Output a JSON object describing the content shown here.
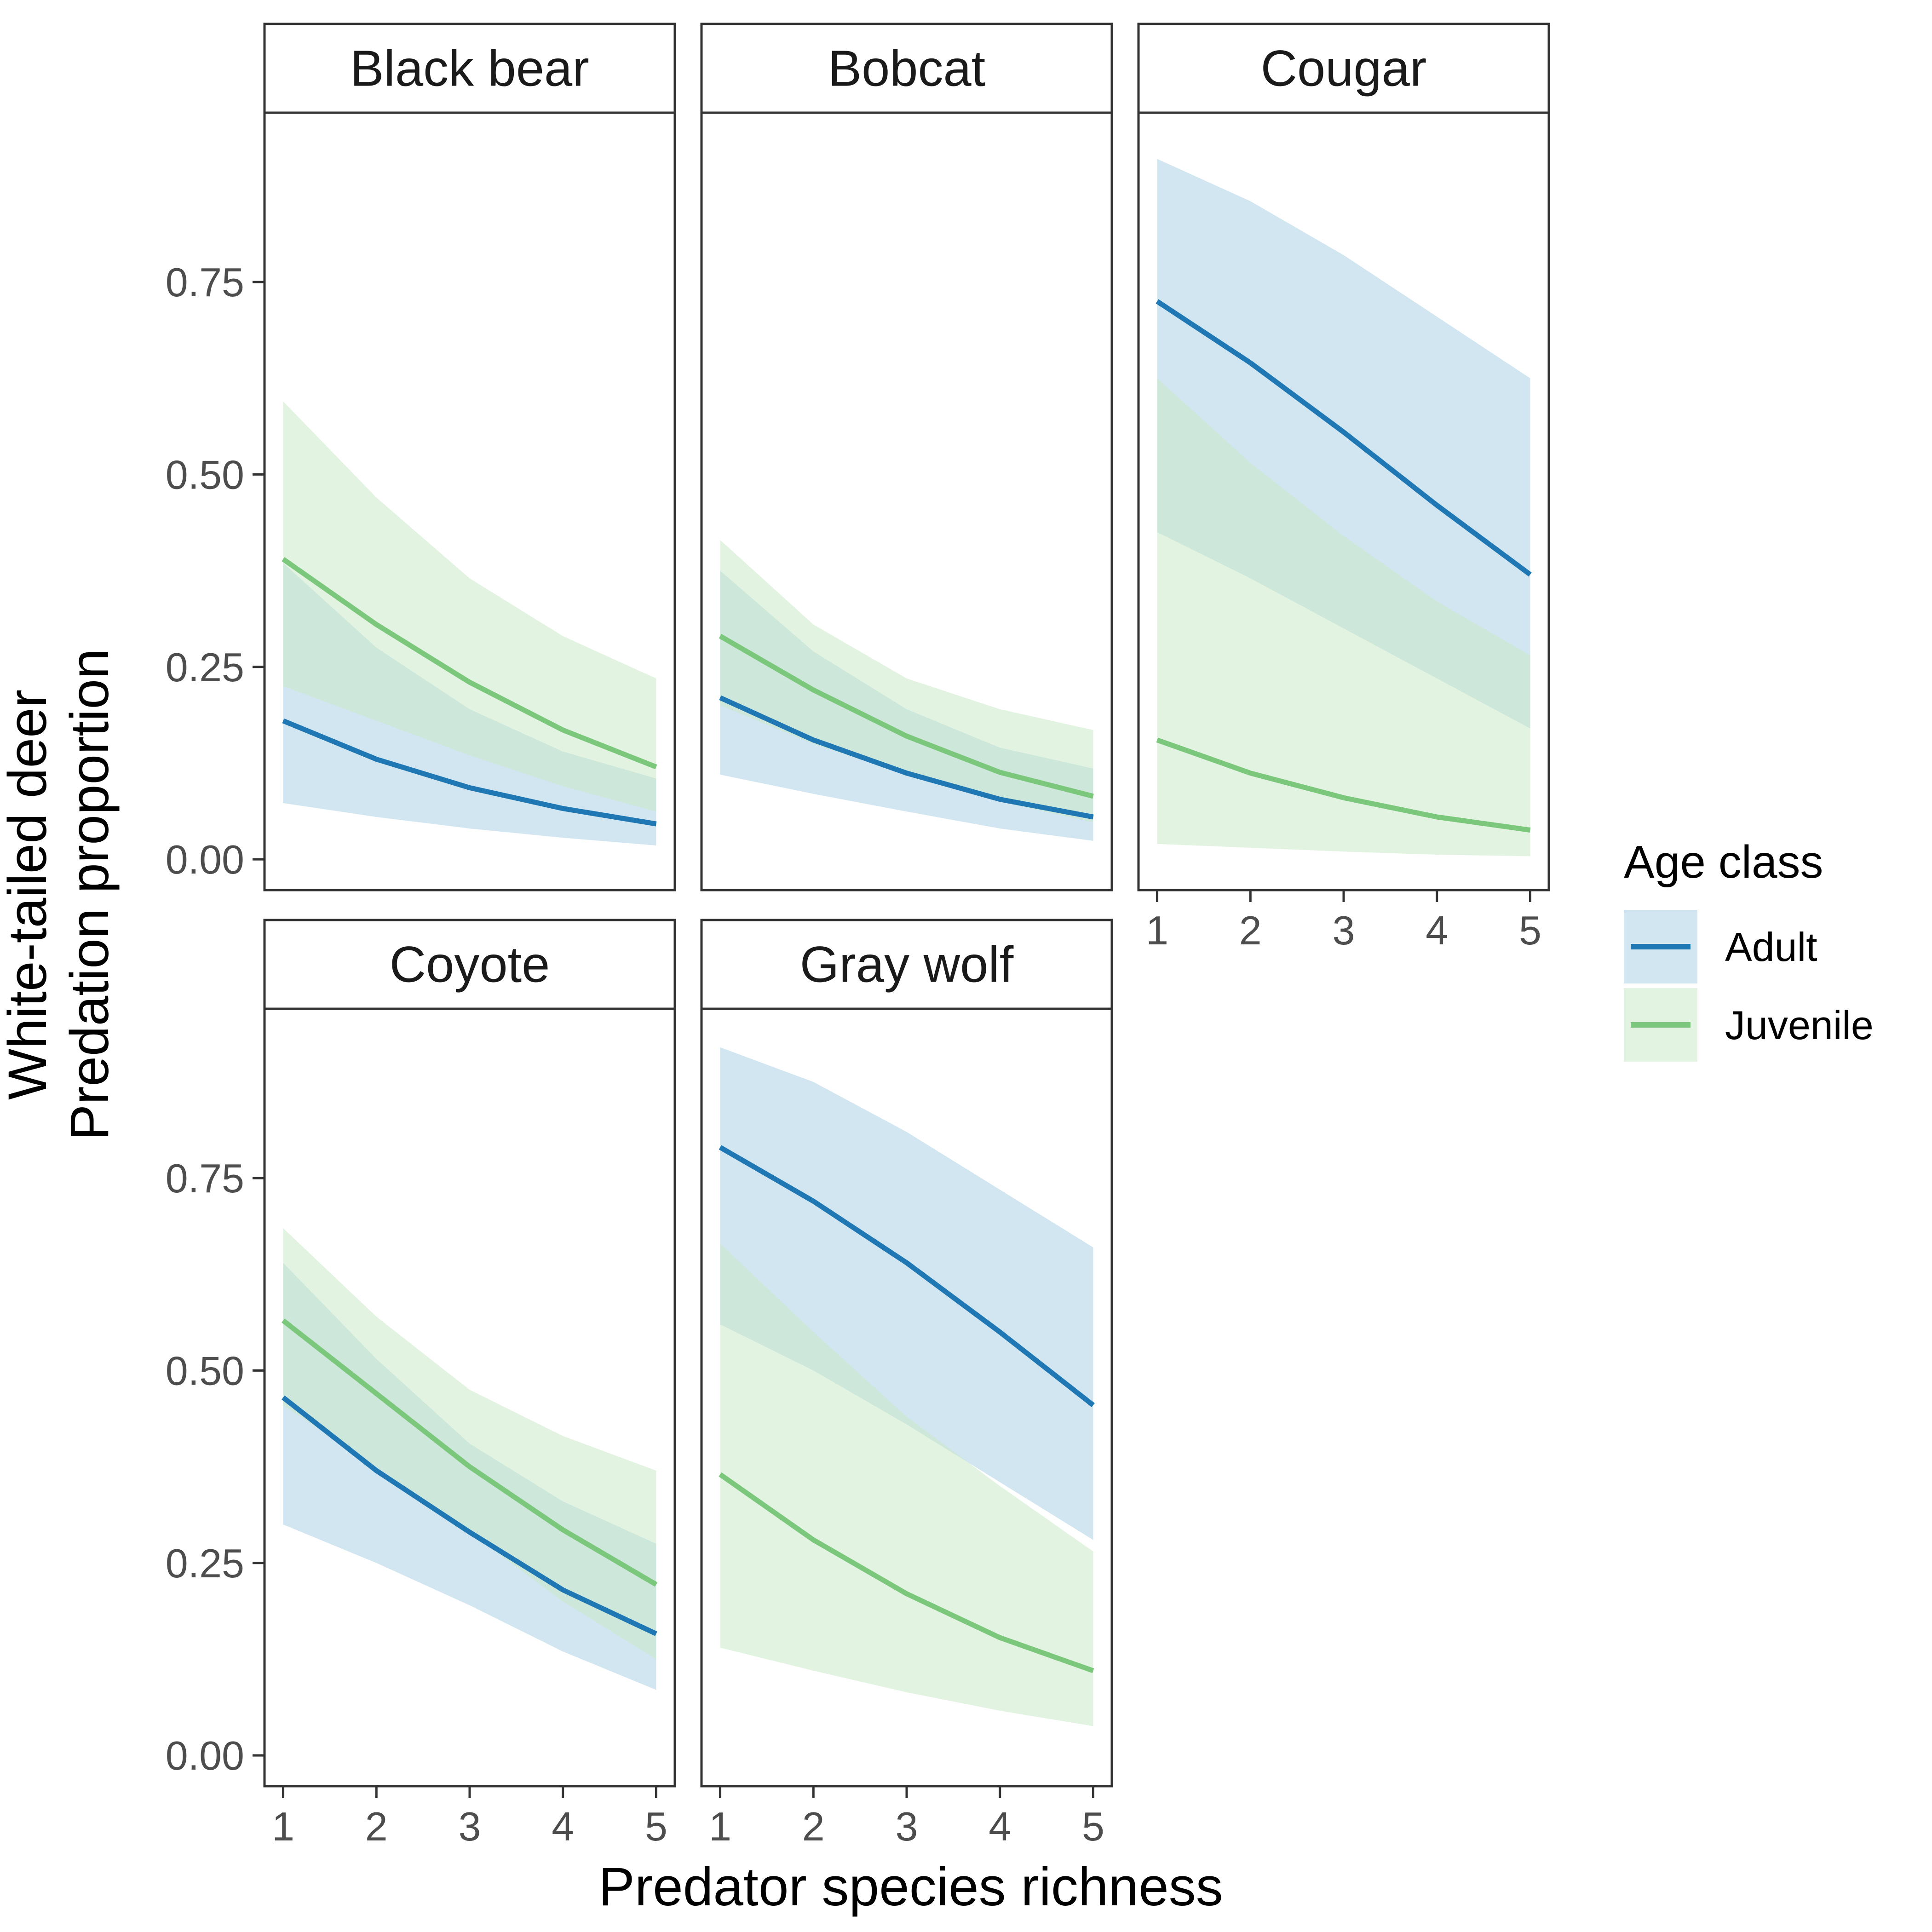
{
  "chart_data": {
    "type": "line",
    "xlabel": "Predator species richness",
    "ylabel": [
      "White-tailed deer",
      "Predation proportion"
    ],
    "x": [
      1,
      2,
      3,
      4,
      5
    ],
    "x_ticks": [
      "1",
      "2",
      "3",
      "4",
      "5"
    ],
    "y_ticks": [
      "0.00",
      "0.25",
      "0.50",
      "0.75"
    ],
    "xlim": [
      0.8,
      5.2
    ],
    "ylim": [
      -0.04,
      0.97
    ],
    "grid": false,
    "legend": {
      "title": "Age class",
      "position": "right",
      "items": [
        {
          "label": "Adult",
          "color": "#1f78b4",
          "fill": "#a6cde3"
        },
        {
          "label": "Juvenile",
          "color": "#7bc77b",
          "fill": "#c8e8c4"
        }
      ]
    },
    "panels": [
      {
        "name": "Black bear",
        "series": [
          {
            "name": "Adult",
            "values": [
              0.18,
              0.13,
              0.093,
              0.066,
              0.046
            ],
            "lower": [
              0.073,
              0.055,
              0.04,
              0.028,
              0.018
            ],
            "upper": [
              0.385,
              0.275,
              0.195,
              0.14,
              0.105
            ]
          },
          {
            "name": "Juvenile",
            "values": [
              0.39,
              0.305,
              0.23,
              0.168,
              0.12
            ],
            "lower": [
              0.225,
              0.18,
              0.135,
              0.095,
              0.062
            ],
            "upper": [
              0.595,
              0.47,
              0.365,
              0.29,
              0.235
            ]
          }
        ]
      },
      {
        "name": "Bobcat",
        "series": [
          {
            "name": "Adult",
            "values": [
              0.21,
              0.155,
              0.112,
              0.078,
              0.055
            ],
            "lower": [
              0.11,
              0.085,
              0.062,
              0.04,
              0.024
            ],
            "upper": [
              0.375,
              0.27,
              0.195,
              0.145,
              0.118
            ]
          },
          {
            "name": "Juvenile",
            "values": [
              0.29,
              0.22,
              0.16,
              0.113,
              0.082
            ],
            "lower": [
              0.2,
              0.15,
              0.11,
              0.075,
              0.048
            ],
            "upper": [
              0.415,
              0.305,
              0.235,
              0.195,
              0.168
            ]
          }
        ]
      },
      {
        "name": "Cougar",
        "series": [
          {
            "name": "Adult",
            "values": [
              0.725,
              0.645,
              0.555,
              0.46,
              0.37
            ],
            "lower": [
              0.425,
              0.365,
              0.3,
              0.235,
              0.17
            ],
            "upper": [
              0.91,
              0.855,
              0.785,
              0.705,
              0.625
            ]
          },
          {
            "name": "Juvenile",
            "values": [
              0.155,
              0.112,
              0.08,
              0.055,
              0.038
            ],
            "lower": [
              0.02,
              0.015,
              0.01,
              0.006,
              0.004
            ],
            "upper": [
              0.625,
              0.515,
              0.42,
              0.335,
              0.265
            ]
          }
        ]
      },
      {
        "name": "Coyote",
        "series": [
          {
            "name": "Adult",
            "values": [
              0.465,
              0.37,
              0.29,
              0.215,
              0.158
            ],
            "lower": [
              0.3,
              0.25,
              0.195,
              0.135,
              0.085
            ],
            "upper": [
              0.64,
              0.515,
              0.405,
              0.33,
              0.275
            ]
          },
          {
            "name": "Juvenile",
            "values": [
              0.565,
              0.47,
              0.375,
              0.293,
              0.222
            ],
            "lower": [
              0.455,
              0.375,
              0.29,
              0.2,
              0.125
            ],
            "upper": [
              0.685,
              0.57,
              0.475,
              0.415,
              0.37
            ]
          }
        ]
      },
      {
        "name": "Gray wolf",
        "series": [
          {
            "name": "Adult",
            "values": [
              0.79,
              0.72,
              0.64,
              0.55,
              0.455
            ],
            "lower": [
              0.56,
              0.5,
              0.43,
              0.355,
              0.28
            ],
            "upper": [
              0.92,
              0.875,
              0.81,
              0.735,
              0.66
            ]
          },
          {
            "name": "Juvenile",
            "values": [
              0.365,
              0.28,
              0.21,
              0.153,
              0.11
            ],
            "lower": [
              0.14,
              0.11,
              0.082,
              0.058,
              0.038
            ],
            "upper": [
              0.665,
              0.55,
              0.44,
              0.35,
              0.265
            ]
          }
        ]
      }
    ]
  }
}
